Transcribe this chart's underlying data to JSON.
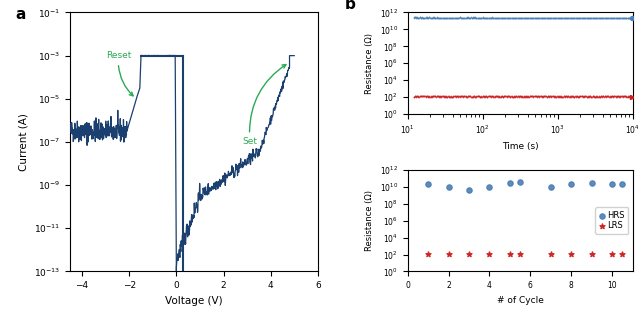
{
  "iv_color": "#1b3f6e",
  "blue_color": "#4a7fb5",
  "red_color": "#cc2020",
  "annotation_color": "#2aaa55",
  "xlabel_iv": "Voltage (V)",
  "ylabel_iv": "Current (A)",
  "xlabel_ret": "Time (s)",
  "ylabel_ret": "Resistance (Ω)",
  "xlabel_cyc": "# of Cycle",
  "ylabel_cyc": "Resistance (Ω)",
  "hrs_label": "HRS",
  "lrs_label": "LRS",
  "panel_a": "a",
  "panel_b": "b",
  "hrs_retention_value": 250000000000.0,
  "lrs_retention_value": 120.0,
  "hrs_cycle_values": [
    20000000000.0,
    10000000000.0,
    4000000000.0,
    10000000000.0,
    30000000000.0,
    40000000000.0,
    10000000000.0,
    20000000000.0,
    30000000000.0,
    20000000000.0,
    20000000000.0
  ],
  "lrs_cycle_values": [
    120,
    120,
    120,
    120,
    120,
    120,
    120,
    120,
    120,
    120,
    120
  ],
  "cycle_x": [
    1,
    2,
    3,
    4,
    5,
    5.5,
    7,
    8,
    9,
    10,
    10.5
  ]
}
